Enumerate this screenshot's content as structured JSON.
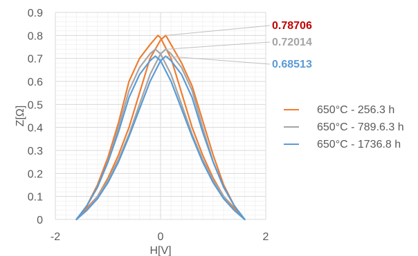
{
  "chart_data": {
    "type": "line",
    "xlabel": "H[V]",
    "ylabel": "Z[Ω]",
    "xlim": [
      -2,
      2
    ],
    "ylim": [
      0,
      0.9
    ],
    "x_ticks": [
      "-2",
      "0",
      "2"
    ],
    "y_ticks": [
      "0",
      "0.1",
      "0.2",
      "0.3",
      "0.4",
      "0.5",
      "0.6",
      "0.7",
      "0.8",
      "0.9"
    ],
    "grid": true,
    "legend_position": "right",
    "series": [
      {
        "name": "650°C - 256.3 h",
        "color": "#ED7D31",
        "peak_label": "0.78706",
        "peak_label_color": "#C00000",
        "branches": [
          {
            "x": [
              -1.6,
              -1.4,
              -1.2,
              -1.0,
              -0.8,
              -0.6,
              -0.4,
              -0.2,
              -0.05,
              0.0,
              0.2,
              0.4,
              0.6,
              0.8,
              1.0,
              1.2,
              1.4,
              1.6
            ],
            "y": [
              0.0,
              0.06,
              0.15,
              0.27,
              0.42,
              0.6,
              0.7,
              0.76,
              0.8,
              0.79,
              0.7,
              0.55,
              0.4,
              0.28,
              0.18,
              0.1,
              0.05,
              0.0
            ]
          },
          {
            "x": [
              -1.6,
              -1.4,
              -1.2,
              -1.0,
              -0.8,
              -0.6,
              -0.4,
              -0.2,
              0.0,
              0.1,
              0.2,
              0.4,
              0.6,
              0.8,
              1.0,
              1.2,
              1.4,
              1.6
            ],
            "y": [
              0.0,
              0.05,
              0.1,
              0.18,
              0.28,
              0.4,
              0.55,
              0.7,
              0.78,
              0.8,
              0.76,
              0.68,
              0.58,
              0.43,
              0.28,
              0.15,
              0.06,
              0.0
            ]
          }
        ]
      },
      {
        "name": "650°C - 789.6.3 h",
        "color": "#A5A5A5",
        "peak_label": "0.72014",
        "peak_label_color": "#A5A5A5",
        "branches": [
          {
            "x": [
              -1.6,
              -1.4,
              -1.2,
              -1.0,
              -0.8,
              -0.6,
              -0.4,
              -0.2,
              -0.1,
              0.0,
              0.2,
              0.4,
              0.6,
              0.8,
              1.0,
              1.2,
              1.4,
              1.6
            ],
            "y": [
              0.0,
              0.06,
              0.14,
              0.25,
              0.4,
              0.56,
              0.66,
              0.72,
              0.74,
              0.72,
              0.63,
              0.5,
              0.37,
              0.26,
              0.17,
              0.1,
              0.04,
              0.0
            ]
          },
          {
            "x": [
              -1.6,
              -1.4,
              -1.2,
              -1.0,
              -0.8,
              -0.6,
              -0.4,
              -0.2,
              0.0,
              0.1,
              0.2,
              0.4,
              0.6,
              0.8,
              1.0,
              1.2,
              1.4,
              1.6
            ],
            "y": [
              0.0,
              0.04,
              0.1,
              0.17,
              0.26,
              0.37,
              0.5,
              0.63,
              0.72,
              0.74,
              0.72,
              0.66,
              0.56,
              0.4,
              0.25,
              0.14,
              0.06,
              0.0
            ]
          }
        ]
      },
      {
        "name": "650°C - 1736.8 h",
        "color": "#5B9BD5",
        "peak_label": "0.68513",
        "peak_label_color": "#5B9BD5",
        "branches": [
          {
            "x": [
              -1.6,
              -1.4,
              -1.2,
              -1.0,
              -0.8,
              -0.6,
              -0.4,
              -0.2,
              -0.1,
              0.0,
              0.2,
              0.4,
              0.6,
              0.8,
              1.0,
              1.2,
              1.4,
              1.6
            ],
            "y": [
              0.0,
              0.06,
              0.14,
              0.25,
              0.38,
              0.53,
              0.63,
              0.69,
              0.71,
              0.69,
              0.6,
              0.48,
              0.36,
              0.25,
              0.16,
              0.09,
              0.04,
              0.0
            ]
          },
          {
            "x": [
              -1.6,
              -1.4,
              -1.2,
              -1.0,
              -0.8,
              -0.6,
              -0.4,
              -0.2,
              0.0,
              0.1,
              0.2,
              0.4,
              0.6,
              0.8,
              1.0,
              1.2,
              1.4,
              1.6
            ],
            "y": [
              0.0,
              0.04,
              0.09,
              0.16,
              0.25,
              0.36,
              0.48,
              0.6,
              0.69,
              0.71,
              0.69,
              0.63,
              0.53,
              0.38,
              0.25,
              0.14,
              0.06,
              0.0
            ]
          }
        ]
      }
    ]
  }
}
